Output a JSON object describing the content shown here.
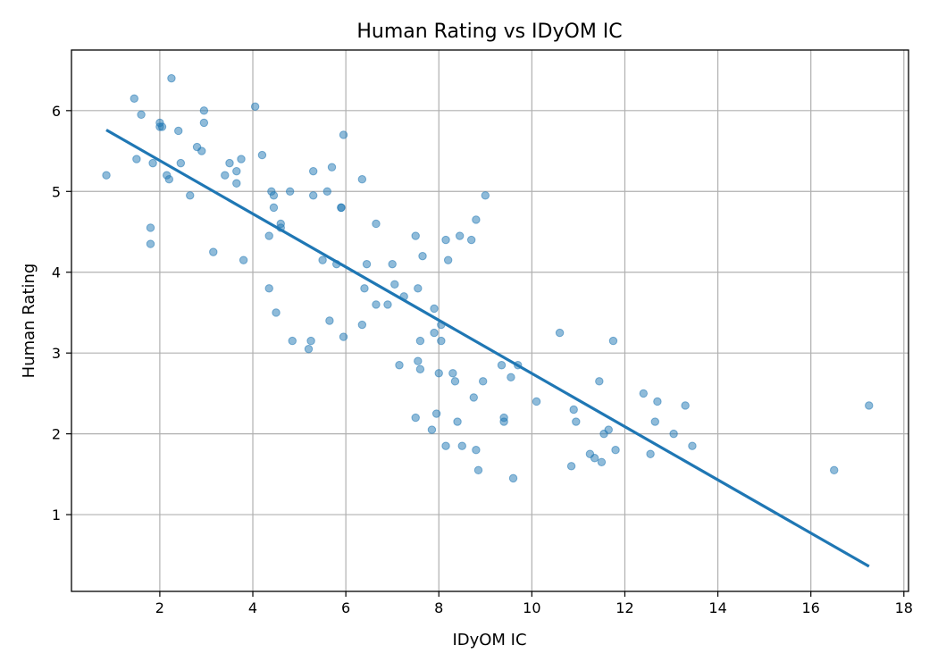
{
  "chart_data": {
    "type": "scatter",
    "title": "Human Rating vs IDyOM IC",
    "xlabel": "IDyOM IC",
    "ylabel": "Human Rating",
    "xlim": [
      0.1,
      18.1
    ],
    "ylim": [
      0.05,
      6.75
    ],
    "xticks": [
      2,
      4,
      6,
      8,
      10,
      12,
      14,
      16,
      18
    ],
    "yticks": [
      1,
      2,
      3,
      4,
      5,
      6
    ],
    "grid": true,
    "point_color": "#1f77b4",
    "line_color": "#1f77b4",
    "series": [
      {
        "kind": "scatter",
        "x": [
          0.85,
          1.45,
          1.5,
          1.6,
          1.85,
          1.8,
          1.8,
          2.0,
          2.0,
          2.05,
          2.15,
          2.2,
          2.25,
          2.4,
          2.45,
          2.65,
          2.8,
          2.9,
          2.95,
          2.95,
          3.15,
          3.4,
          3.5,
          3.65,
          3.65,
          3.75,
          3.8,
          4.05,
          4.2,
          4.35,
          4.35,
          4.4,
          4.45,
          4.45,
          4.5,
          4.6,
          4.6,
          4.8,
          4.85,
          5.2,
          5.25,
          5.3,
          5.3,
          5.5,
          5.6,
          5.65,
          5.7,
          5.8,
          5.9,
          5.9,
          5.95,
          5.95,
          6.35,
          6.35,
          6.4,
          6.45,
          6.65,
          6.65,
          6.9,
          7.0,
          7.05,
          7.15,
          7.25,
          7.5,
          7.5,
          7.55,
          7.55,
          7.6,
          7.6,
          7.65,
          7.85,
          7.9,
          7.9,
          7.95,
          8.0,
          8.05,
          8.05,
          8.15,
          8.15,
          8.2,
          8.3,
          8.35,
          8.4,
          8.45,
          8.5,
          8.7,
          8.75,
          8.8,
          8.8,
          8.85,
          8.95,
          9.0,
          9.35,
          9.4,
          9.4,
          9.55,
          9.6,
          9.7,
          10.1,
          10.6,
          10.85,
          10.9,
          10.95,
          11.25,
          11.35,
          11.45,
          11.5,
          11.55,
          11.65,
          11.75,
          11.8,
          12.4,
          12.55,
          12.65,
          12.7,
          13.05,
          13.3,
          13.45,
          16.5,
          17.25
        ],
        "y": [
          5.2,
          6.15,
          5.4,
          5.95,
          5.35,
          4.55,
          4.35,
          5.8,
          5.85,
          5.8,
          5.2,
          5.15,
          6.4,
          5.75,
          5.35,
          4.95,
          5.55,
          5.5,
          6.0,
          5.85,
          4.25,
          5.2,
          5.35,
          5.25,
          5.1,
          5.4,
          4.15,
          6.05,
          5.45,
          4.45,
          3.8,
          5.0,
          4.95,
          4.8,
          3.5,
          4.6,
          4.55,
          5.0,
          3.15,
          3.05,
          3.15,
          4.95,
          5.25,
          4.15,
          5.0,
          3.4,
          5.3,
          4.1,
          4.8,
          4.8,
          5.7,
          3.2,
          5.15,
          3.35,
          3.8,
          4.1,
          4.6,
          3.6,
          3.6,
          4.1,
          3.85,
          2.85,
          3.7,
          4.45,
          2.2,
          3.8,
          2.9,
          3.15,
          2.8,
          4.2,
          2.05,
          3.55,
          3.25,
          2.25,
          2.75,
          3.35,
          3.15,
          4.4,
          1.85,
          4.15,
          2.75,
          2.65,
          2.15,
          4.45,
          1.85,
          4.4,
          2.45,
          4.65,
          1.8,
          1.55,
          2.65,
          4.95,
          2.85,
          2.15,
          2.2,
          2.7,
          1.45,
          2.85,
          2.4,
          3.25,
          1.6,
          2.3,
          2.15,
          1.75,
          1.7,
          2.65,
          1.65,
          2.0,
          2.05,
          3.15,
          1.8,
          2.5,
          1.75,
          2.15,
          2.4,
          2.0,
          2.35,
          1.85,
          1.55,
          2.35
        ]
      },
      {
        "kind": "line",
        "x": [
          0.85,
          17.25
        ],
        "y": [
          5.76,
          0.36
        ]
      }
    ]
  }
}
